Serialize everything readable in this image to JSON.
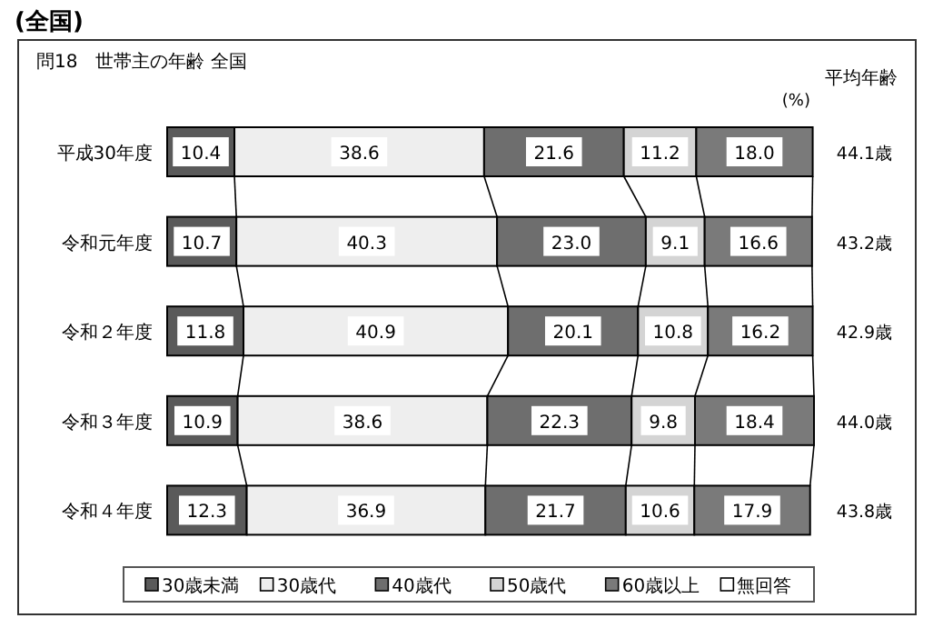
{
  "chart_data": {
    "type": "bar",
    "orientation": "horizontal",
    "stacked": true,
    "title": "(全国)",
    "subtitle": "問18　世帯主の年齢 全国",
    "categories": [
      "平成30年度",
      "令和元年度",
      "令和２年度",
      "令和３年度",
      "令和４年度"
    ],
    "series": [
      {
        "name": "30歳未満",
        "color": "#5a5a5a",
        "values": [
          10.4,
          10.7,
          11.8,
          10.9,
          12.3
        ],
        "value_labels": [
          "10.4",
          "10.7",
          "11.8",
          "10.9",
          "12.3"
        ]
      },
      {
        "name": "30歳代",
        "color": "#eeeeee",
        "values": [
          38.6,
          40.3,
          40.9,
          38.6,
          36.9
        ],
        "value_labels": [
          "38.6",
          "40.3",
          "40.9",
          "38.6",
          "36.9"
        ]
      },
      {
        "name": "40歳代",
        "color": "#6e6e6e",
        "values": [
          21.6,
          23.0,
          20.1,
          22.3,
          21.7
        ],
        "value_labels": [
          "21.6",
          "23.0",
          "20.1",
          "22.3",
          "21.7"
        ]
      },
      {
        "name": "50歳代",
        "color": "#d4d4d4",
        "values": [
          11.2,
          9.1,
          10.8,
          9.8,
          10.6
        ],
        "value_labels": [
          "11.2",
          "9.1",
          "10.8",
          "9.8",
          "10.6"
        ]
      },
      {
        "name": "60歳以上",
        "color": "#7a7a7a",
        "values": [
          18.0,
          16.6,
          16.2,
          18.4,
          17.9
        ],
        "value_labels": [
          "18.0",
          "16.6",
          "16.2",
          "18.4",
          "17.9"
        ]
      },
      {
        "name": "無回答",
        "color": "#ffffff",
        "values": [
          null,
          null,
          null,
          null,
          null
        ]
      }
    ],
    "xlim": [
      0,
      100
    ],
    "tick_labels": "y",
    "legend": "bottom",
    "annotations": [
      "(%)",
      "平均年齢",
      "44.1歳",
      "43.2歳",
      "42.9歳",
      "44.0歳",
      "43.8歳"
    ]
  }
}
